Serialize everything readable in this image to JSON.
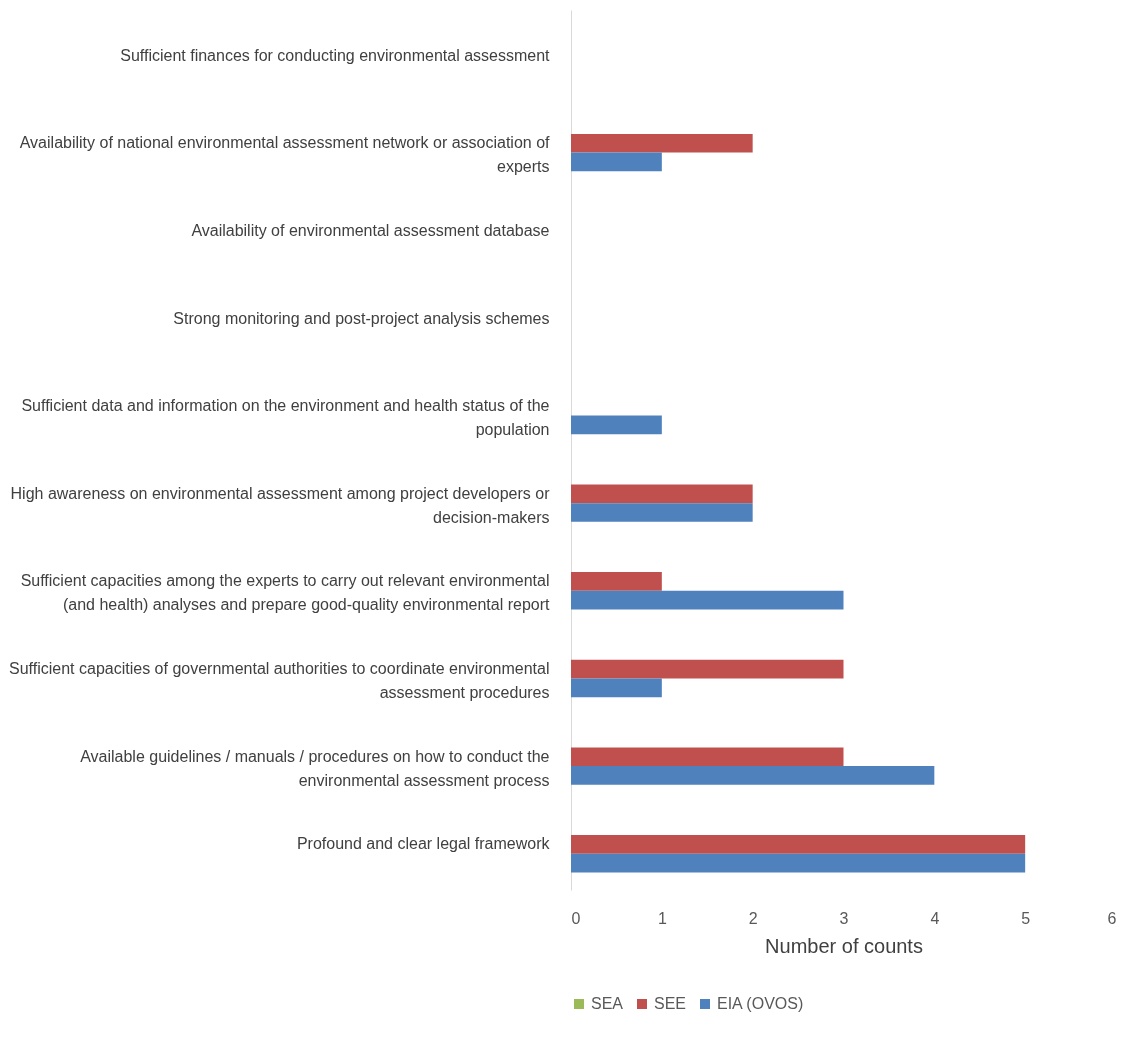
{
  "chart_data": {
    "type": "bar",
    "orientation": "horizontal",
    "xlabel": "Number of counts",
    "categories": [
      "Sufficient finances for conducting environmental assessment",
      "Availability of national environmental assessment network or association of experts",
      "Availability of environmental assessment database",
      "Strong monitoring and post-project analysis schemes",
      "Sufficient data and information on the environment and health status of the population",
      "High awareness on environmental assessment among project developers or decision-makers",
      "Sufficient capacities among the experts to carry out relevant environmental (and health) analyses and prepare good-quality environmental report",
      "Sufficient capacities of governmental authorities to coordinate environmental assessment procedures",
      "Available guidelines / manuals / procedures on how to conduct the environmental assessment process",
      "Profound and clear legal framework"
    ],
    "series": [
      {
        "name": "SEA",
        "color": "#9bbb59",
        "values": [
          0,
          0,
          0,
          0,
          0,
          0,
          0,
          0,
          0,
          0
        ]
      },
      {
        "name": "SEE",
        "color": "#c0504d",
        "values": [
          0,
          2,
          0,
          0,
          0,
          2,
          1,
          3,
          3,
          5
        ]
      },
      {
        "name": "EIA (OVOS)",
        "color": "#4f81bd",
        "values": [
          0,
          1,
          0,
          0,
          1,
          2,
          3,
          1,
          4,
          5
        ]
      }
    ],
    "xlim": [
      0,
      6
    ],
    "xticks": [
      0,
      1,
      2,
      3,
      4,
      5,
      6
    ],
    "grid": false,
    "legend": "bottom"
  }
}
